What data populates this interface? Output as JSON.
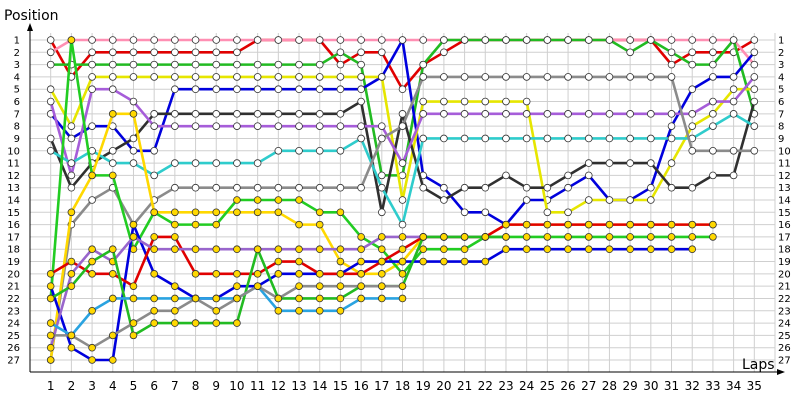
{
  "chart_data": {
    "type": "line",
    "ylabel": "Position",
    "xlabel": "Laps",
    "x_ticks": [
      "1",
      "2",
      "3",
      "4",
      "5",
      "6",
      "7",
      "8",
      "9",
      "10",
      "11",
      "12",
      "13",
      "14",
      "15",
      "16",
      "17",
      "18",
      "19",
      "20",
      "21",
      "22",
      "23",
      "24",
      "25",
      "26",
      "27",
      "28",
      "29",
      "30",
      "31",
      "32",
      "33",
      "34",
      "35"
    ],
    "y_ticks": [
      "1",
      "2",
      "3",
      "4",
      "5",
      "6",
      "7",
      "8",
      "9",
      "10",
      "11",
      "12",
      "13",
      "14",
      "15",
      "16",
      "17",
      "18",
      "19",
      "20",
      "21",
      "22",
      "23",
      "24",
      "25",
      "26",
      "27"
    ],
    "xlim": [
      0,
      36
    ],
    "ylim": [
      1,
      27
    ],
    "y_inverted": true,
    "grid": true,
    "series": [
      {
        "color": "#e00000",
        "marker_fill": "#ffffff",
        "values": [
          1,
          4,
          2,
          2,
          2,
          2,
          2,
          2,
          2,
          2,
          1,
          1,
          1,
          1,
          3,
          2,
          2,
          5,
          3,
          2,
          1,
          1,
          1,
          1,
          1,
          1,
          1,
          1,
          1,
          1,
          3,
          2,
          2,
          2,
          1
        ]
      },
      {
        "color": "#ff8fb3",
        "marker_fill": "#ffffff",
        "values": [
          2,
          1,
          1,
          1,
          1,
          1,
          1,
          1,
          1,
          1,
          1,
          1,
          1,
          1,
          1,
          1,
          1,
          1,
          1,
          1,
          1,
          1,
          1,
          1,
          1,
          1,
          1,
          1,
          1,
          1,
          1,
          1,
          1,
          1,
          3
        ]
      },
      {
        "color": "#22bb22",
        "marker_fill": "#ffffff",
        "values": [
          3,
          3,
          3,
          3,
          3,
          3,
          3,
          3,
          3,
          3,
          3,
          3,
          3,
          3,
          2,
          3,
          12,
          12,
          3,
          1,
          1,
          1,
          1,
          1,
          1,
          1,
          1,
          1,
          2,
          1,
          2,
          3,
          3,
          1,
          7
        ]
      },
      {
        "color": "#0000dd",
        "marker_fill": "#ffffff",
        "values": [
          7,
          9,
          8,
          8,
          10,
          10,
          5,
          5,
          5,
          5,
          5,
          5,
          5,
          5,
          5,
          5,
          4,
          1,
          12,
          13,
          15,
          15,
          16,
          14,
          14,
          13,
          12,
          14,
          14,
          13,
          8,
          5,
          4,
          4,
          2
        ]
      },
      {
        "color": "#e6e600",
        "marker_fill": "#ffffff",
        "values": [
          5,
          8,
          4,
          4,
          4,
          4,
          4,
          4,
          4,
          4,
          4,
          4,
          4,
          4,
          4,
          4,
          4,
          14,
          6,
          6,
          6,
          6,
          6,
          6,
          15,
          15,
          14,
          14,
          14,
          14,
          11,
          8,
          7,
          5,
          5
        ]
      },
      {
        "color": "#303030",
        "marker_fill": "#ffffff",
        "values": [
          9,
          13,
          11,
          10,
          9,
          7,
          7,
          7,
          7,
          7,
          7,
          7,
          7,
          7,
          7,
          6,
          15,
          7,
          13,
          14,
          13,
          13,
          12,
          13,
          13,
          12,
          11,
          11,
          11,
          11,
          13,
          13,
          12,
          12,
          6
        ]
      },
      {
        "color": "#a65dd9",
        "marker_fill": "#ffffff",
        "values": [
          6,
          12,
          5,
          5,
          6,
          8,
          8,
          8,
          8,
          8,
          8,
          8,
          8,
          8,
          8,
          8,
          8,
          11,
          7,
          7,
          7,
          7,
          7,
          7,
          7,
          7,
          7,
          7,
          7,
          7,
          7,
          7,
          6,
          6,
          4
        ]
      },
      {
        "color": "#2fcccc",
        "marker_fill": "#ffffff",
        "values": [
          10,
          11,
          10,
          11,
          11,
          12,
          11,
          11,
          11,
          11,
          11,
          10,
          10,
          10,
          10,
          9,
          13,
          16,
          9,
          9,
          9,
          9,
          9,
          9,
          9,
          9,
          9,
          9,
          9,
          9,
          9,
          9,
          8,
          7,
          8
        ]
      },
      {
        "color": "#8b8b8b",
        "marker_fill": "#ffffff",
        "values": [
          27,
          16,
          14,
          13,
          16,
          14,
          13,
          13,
          13,
          13,
          13,
          13,
          13,
          13,
          13,
          13,
          9,
          8,
          4,
          4,
          4,
          4,
          4,
          4,
          4,
          4,
          4,
          4,
          4,
          4,
          4,
          10,
          10,
          10,
          10
        ]
      },
      {
        "color": "#ffd800",
        "marker_fill": "#ffd800",
        "values": [
          27,
          15,
          12,
          7,
          7,
          15,
          15,
          15,
          15,
          15,
          15,
          15,
          16,
          16,
          19,
          20,
          20,
          19,
          17,
          17,
          17,
          17,
          16,
          16,
          16,
          16,
          16,
          16,
          16,
          16,
          16,
          16,
          16
        ]
      },
      {
        "color": "#22cc22",
        "marker_fill": "#ffd800",
        "values": [
          22,
          1,
          12,
          12,
          18,
          15,
          16,
          16,
          16,
          14,
          14,
          14,
          14,
          15,
          15,
          17,
          18,
          20,
          18,
          18,
          18,
          17,
          17,
          17,
          17,
          17,
          17,
          17,
          17,
          17,
          17,
          17,
          17
        ]
      },
      {
        "color": "#0000dd",
        "marker_fill": "#ffd800",
        "values": [
          21,
          26,
          27,
          27,
          16,
          20,
          21,
          22,
          22,
          21,
          21,
          20,
          20,
          20,
          20,
          19,
          19,
          19,
          19,
          19,
          19,
          19,
          18,
          18,
          18,
          18,
          18,
          18,
          18,
          18,
          18,
          18
        ]
      },
      {
        "color": "#e00000",
        "marker_fill": "#ffd800",
        "values": [
          20,
          19,
          20,
          20,
          21,
          17,
          17,
          20,
          20,
          20,
          20,
          19,
          19,
          20,
          20,
          20,
          19,
          18,
          17,
          17,
          17,
          17,
          16,
          16,
          16,
          16,
          16,
          16,
          16,
          16,
          16,
          16,
          16
        ]
      },
      {
        "color": "#9966cc",
        "marker_fill": "#ffd800",
        "values": [
          26,
          20,
          18,
          19,
          17,
          18,
          18,
          18,
          18,
          18,
          18,
          18,
          18,
          18,
          18,
          18,
          17,
          17,
          17,
          17,
          17,
          17
        ]
      },
      {
        "color": "#22bb22",
        "marker_fill": "#ffd800",
        "values": [
          22,
          21,
          19,
          18,
          25,
          24,
          24,
          24,
          24,
          24,
          18,
          22,
          22,
          22,
          22,
          21,
          21,
          21,
          17,
          17,
          17,
          17,
          17
        ]
      },
      {
        "color": "#2aa3e0",
        "marker_fill": "#ffd800",
        "values": [
          24,
          25,
          23,
          22,
          22,
          22,
          22,
          22,
          22,
          22,
          21,
          23,
          23,
          23,
          23,
          22,
          22,
          22
        ]
      },
      {
        "color": "#8b8b8b",
        "marker_fill": "#ffd800",
        "values": [
          25,
          25,
          26,
          25,
          24,
          23,
          23,
          22,
          23,
          22,
          21,
          22,
          21,
          21,
          21,
          21,
          21,
          21
        ]
      }
    ]
  }
}
